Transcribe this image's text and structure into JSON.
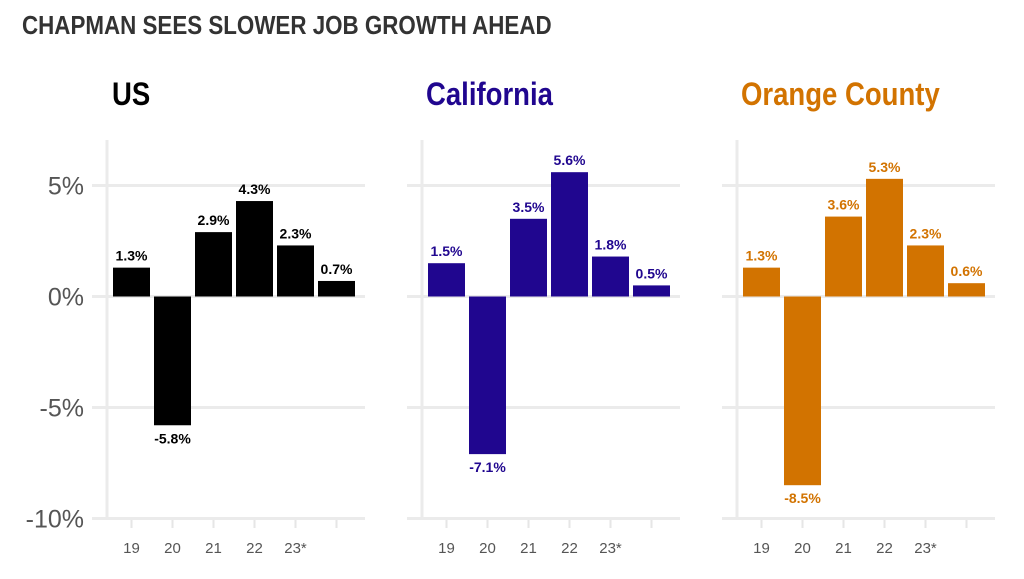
{
  "title": "CHAPMAN SEES SLOWER JOB GROWTH AHEAD",
  "chart_data": {
    "type": "bar",
    "title": "CHAPMAN SEES SLOWER JOB GROWTH AHEAD",
    "categories": [
      "19",
      "20",
      "21",
      "22",
      "23*",
      ""
    ],
    "ylim": [
      -10,
      7
    ],
    "yticks": [
      5,
      0,
      -5,
      -10
    ],
    "ytick_labels": [
      "5%",
      "0%",
      "-5%",
      "-10%"
    ],
    "grid": true,
    "series": [
      {
        "name": "US",
        "color": "#000000",
        "values": [
          1.3,
          -5.8,
          2.9,
          4.3,
          2.3,
          0.7
        ],
        "labels": [
          "1.3%",
          "-5.8%",
          "2.9%",
          "4.3%",
          "2.3%",
          "0.7%"
        ]
      },
      {
        "name": "California",
        "color": "#20068f",
        "values": [
          1.5,
          -7.1,
          3.5,
          5.6,
          1.8,
          0.5
        ],
        "labels": [
          "1.5%",
          "-7.1%",
          "3.5%",
          "5.6%",
          "1.8%",
          "0.5%"
        ]
      },
      {
        "name": "Orange County",
        "color": "#d27300",
        "values": [
          1.3,
          -8.5,
          3.6,
          5.3,
          2.3,
          0.6
        ],
        "labels": [
          "1.3%",
          "-8.5%",
          "3.6%",
          "5.3%",
          "2.3%",
          "0.6%"
        ]
      }
    ]
  }
}
